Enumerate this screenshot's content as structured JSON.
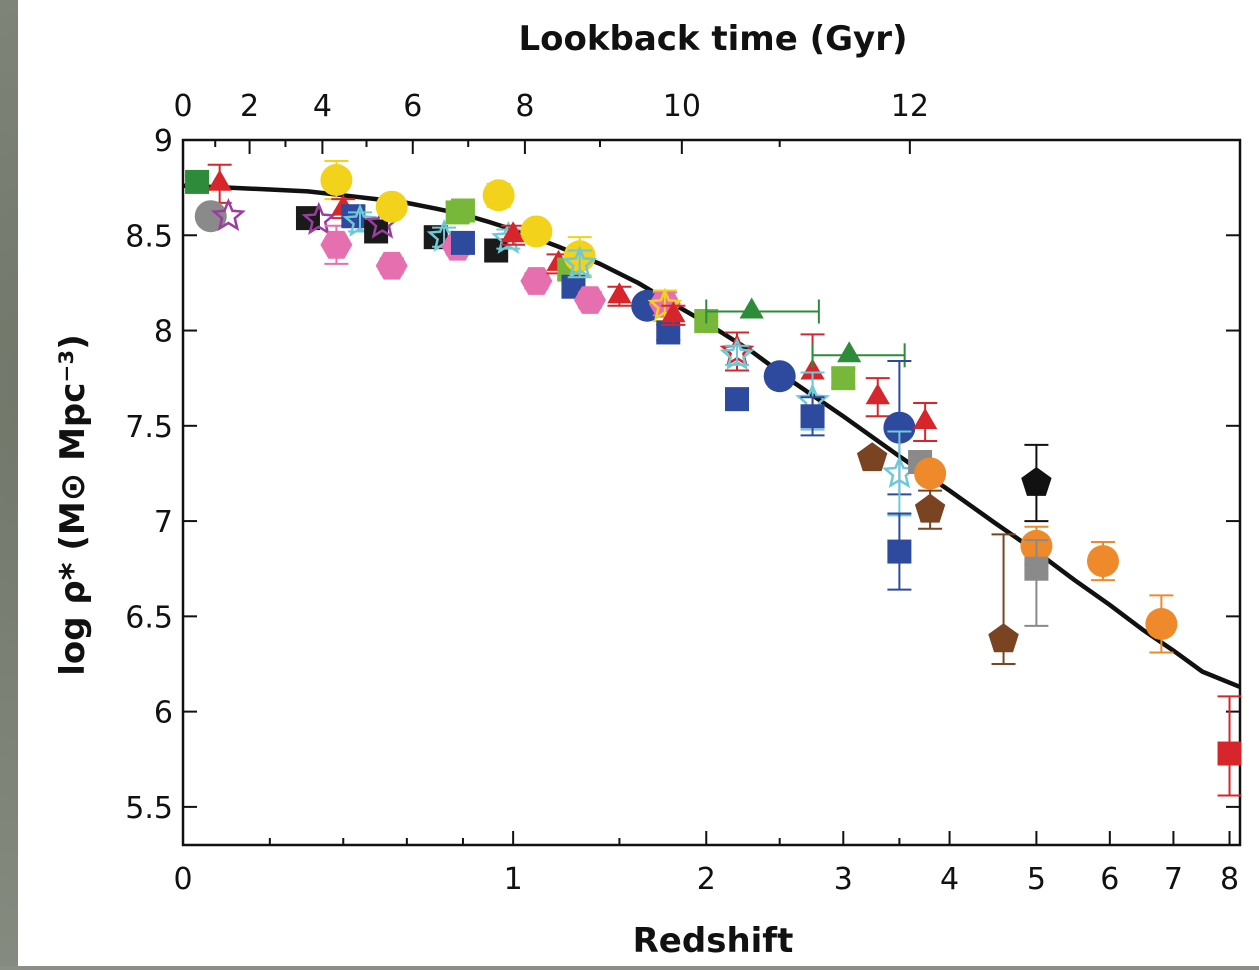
{
  "chart_data": {
    "type": "scatter",
    "title": "",
    "xlabel": "Redshift",
    "ylabel": "log ρ* (M⊙ Mpc⁻³)",
    "top_axis_label": "Lookback time (Gyr)",
    "x_scale": "log(1+z)",
    "xlim": [
      0,
      8.2
    ],
    "ylim": [
      5.3,
      9
    ],
    "x_ticks": [
      0,
      1,
      2,
      3,
      4,
      5,
      6,
      7,
      8
    ],
    "y_ticks": [
      5.5,
      6,
      6.5,
      7,
      7.5,
      8,
      8.5,
      9
    ],
    "top_ticks": [
      0,
      2,
      4,
      6,
      8,
      10,
      12
    ],
    "model_curve": [
      {
        "x": 0,
        "y": 8.76
      },
      {
        "x": 0.1,
        "y": 8.75
      },
      {
        "x": 0.2,
        "y": 8.74
      },
      {
        "x": 0.3,
        "y": 8.73
      },
      {
        "x": 0.4,
        "y": 8.71
      },
      {
        "x": 0.5,
        "y": 8.69
      },
      {
        "x": 0.6,
        "y": 8.67
      },
      {
        "x": 0.7,
        "y": 8.64
      },
      {
        "x": 0.8,
        "y": 8.61
      },
      {
        "x": 0.9,
        "y": 8.57
      },
      {
        "x": 1.0,
        "y": 8.53
      },
      {
        "x": 1.2,
        "y": 8.44
      },
      {
        "x": 1.4,
        "y": 8.35
      },
      {
        "x": 1.6,
        "y": 8.25
      },
      {
        "x": 1.8,
        "y": 8.14
      },
      {
        "x": 2.0,
        "y": 8.04
      },
      {
        "x": 2.3,
        "y": 7.89
      },
      {
        "x": 2.6,
        "y": 7.73
      },
      {
        "x": 3.0,
        "y": 7.55
      },
      {
        "x": 3.5,
        "y": 7.34
      },
      {
        "x": 4.0,
        "y": 7.16
      },
      {
        "x": 4.5,
        "y": 6.99
      },
      {
        "x": 5.0,
        "y": 6.84
      },
      {
        "x": 5.5,
        "y": 6.69
      },
      {
        "x": 6.0,
        "y": 6.56
      },
      {
        "x": 6.5,
        "y": 6.43
      },
      {
        "x": 7.0,
        "y": 6.32
      },
      {
        "x": 7.5,
        "y": 6.21
      },
      {
        "x": 8.2,
        "y": 6.13
      }
    ],
    "points": [
      {
        "x": 0.03,
        "y": 8.78,
        "shape": "square",
        "color": "#2e8b3a",
        "err": [
          0.03,
          0.03
        ]
      },
      {
        "x": 0.08,
        "y": 8.77,
        "shape": "triangle",
        "color": "#d6262b",
        "err": [
          0.1,
          0.1
        ]
      },
      {
        "x": 0.06,
        "y": 8.6,
        "shape": "circle",
        "color": "#8a8a8a"
      },
      {
        "x": 0.1,
        "y": 8.6,
        "shape": "star",
        "color": "#9b3da0"
      },
      {
        "x": 0.3,
        "y": 8.59,
        "shape": "square",
        "color": "#1a1a1a"
      },
      {
        "x": 0.33,
        "y": 8.58,
        "shape": "star",
        "color": "#9b3da0"
      },
      {
        "x": 0.38,
        "y": 8.79,
        "shape": "circle",
        "color": "#f2d21b",
        "err": [
          0.1,
          0.1
        ]
      },
      {
        "x": 0.38,
        "y": 8.45,
        "shape": "hexagon",
        "color": "#e66fb0",
        "err": [
          0.1,
          0.1
        ]
      },
      {
        "x": 0.4,
        "y": 8.64,
        "shape": "triangle",
        "color": "#d6262b",
        "err": [
          0.05,
          0.05
        ]
      },
      {
        "x": 0.43,
        "y": 8.6,
        "shape": "square",
        "color": "#2e4a9e",
        "err": [
          0.05,
          0.05
        ]
      },
      {
        "x": 0.45,
        "y": 8.57,
        "shape": "star",
        "color": "#6fc8d8",
        "err": [
          0.05,
          0.05
        ]
      },
      {
        "x": 0.5,
        "y": 8.52,
        "shape": "square",
        "color": "#1a1a1a"
      },
      {
        "x": 0.52,
        "y": 8.56,
        "shape": "star",
        "color": "#9b3da0"
      },
      {
        "x": 0.55,
        "y": 8.65,
        "shape": "circle",
        "color": "#f2d21b",
        "err": [
          0.05,
          0.05
        ]
      },
      {
        "x": 0.55,
        "y": 8.34,
        "shape": "hexagon",
        "color": "#e66fb0",
        "err": [
          0.04,
          0.04
        ]
      },
      {
        "x": 0.7,
        "y": 8.49,
        "shape": "square",
        "color": "#1a1a1a"
      },
      {
        "x": 0.73,
        "y": 8.49,
        "shape": "star",
        "color": "#6fc8d8",
        "err": [
          0.05,
          0.05
        ]
      },
      {
        "x": 0.78,
        "y": 8.62,
        "shape": "square",
        "color": "#77b83a",
        "err": [
          0.05,
          0.05
        ]
      },
      {
        "x": 0.78,
        "y": 8.44,
        "shape": "hexagon",
        "color": "#e66fb0",
        "err": [
          0.04,
          0.04
        ]
      },
      {
        "x": 0.8,
        "y": 8.63,
        "shape": "square",
        "color": "#77b83a",
        "err": [
          0.05,
          0.05
        ]
      },
      {
        "x": 0.8,
        "y": 8.46,
        "shape": "square",
        "color": "#2e4a9e",
        "err": [
          0.05,
          0.05
        ]
      },
      {
        "x": 0.94,
        "y": 8.71,
        "shape": "circle",
        "color": "#f2d21b",
        "err": [
          0.06,
          0.06
        ]
      },
      {
        "x": 0.93,
        "y": 8.42,
        "shape": "square",
        "color": "#1a1a1a"
      },
      {
        "x": 0.98,
        "y": 8.48,
        "shape": "star",
        "color": "#6fc8d8",
        "err": [
          0.05,
          0.05
        ]
      },
      {
        "x": 1.0,
        "y": 8.5,
        "shape": "triangle",
        "color": "#d6262b",
        "err": [
          0.05,
          0.05
        ]
      },
      {
        "x": 1.1,
        "y": 8.52,
        "shape": "circle",
        "color": "#f2d21b",
        "err": [
          0.05,
          0.05
        ]
      },
      {
        "x": 1.1,
        "y": 8.26,
        "shape": "hexagon",
        "color": "#e66fb0",
        "err": [
          0.04,
          0.04
        ]
      },
      {
        "x": 1.2,
        "y": 8.35,
        "shape": "triangle",
        "color": "#d6262b",
        "err": [
          0.05,
          0.05
        ]
      },
      {
        "x": 1.25,
        "y": 8.32,
        "shape": "square",
        "color": "#77b83a",
        "err": [
          0.05,
          0.05
        ]
      },
      {
        "x": 1.3,
        "y": 8.39,
        "shape": "circle",
        "color": "#f2d21b",
        "err": [
          0.1,
          0.1
        ]
      },
      {
        "x": 1.27,
        "y": 8.23,
        "shape": "square",
        "color": "#2e4a9e",
        "err": [
          0.05,
          0.05
        ]
      },
      {
        "x": 1.3,
        "y": 8.35,
        "shape": "star",
        "color": "#6fc8d8",
        "err": [
          0.07,
          0.07
        ]
      },
      {
        "x": 1.35,
        "y": 8.16,
        "shape": "hexagon",
        "color": "#e66fb0",
        "err": [
          0.04,
          0.04
        ]
      },
      {
        "x": 1.5,
        "y": 8.18,
        "shape": "triangle",
        "color": "#d6262b",
        "err": [
          0.05,
          0.05
        ]
      },
      {
        "x": 1.65,
        "y": 8.13,
        "shape": "circle",
        "color": "#2e4a9e"
      },
      {
        "x": 1.75,
        "y": 8.14,
        "shape": "hexagon",
        "color": "#e66fb0",
        "err": [
          0.06,
          0.06
        ]
      },
      {
        "x": 1.75,
        "y": 8.13,
        "shape": "star",
        "color": "#f2d21b",
        "err": [
          0.08,
          0.08
        ]
      },
      {
        "x": 1.77,
        "y": 7.99,
        "shape": "square",
        "color": "#2e4a9e",
        "err": [
          0.04,
          0.04
        ]
      },
      {
        "x": 1.8,
        "y": 8.08,
        "shape": "triangle",
        "color": "#d6262b",
        "err": [
          0.05,
          0.05
        ]
      },
      {
        "x": 2.0,
        "y": 8.05,
        "shape": "square",
        "color": "#77b83a"
      },
      {
        "x": 2.3,
        "y": 8.1,
        "shape": "triangle",
        "color": "#2e8b3a",
        "xerr": [
          0.3,
          0.5
        ]
      },
      {
        "x": 2.2,
        "y": 7.89,
        "shape": "star",
        "color": "#d6262b",
        "err": [
          0.1,
          0.1
        ]
      },
      {
        "x": 2.2,
        "y": 7.87,
        "shape": "star",
        "color": "#6fc8d8",
        "err": [
          0.05,
          0.05
        ]
      },
      {
        "x": 2.2,
        "y": 7.64,
        "shape": "square",
        "color": "#2e4a9e",
        "err": [
          0.05,
          0.05
        ]
      },
      {
        "x": 2.5,
        "y": 7.76,
        "shape": "circle",
        "color": "#2e4a9e"
      },
      {
        "x": 2.75,
        "y": 7.78,
        "shape": "triangle",
        "color": "#d6262b",
        "err": [
          0.2,
          0.2
        ]
      },
      {
        "x": 2.75,
        "y": 7.63,
        "shape": "star",
        "color": "#6fc8d8",
        "err": [
          0.15,
          0.15
        ]
      },
      {
        "x": 2.75,
        "y": 7.55,
        "shape": "square",
        "color": "#2e4a9e",
        "err": [
          0.1,
          0.1
        ]
      },
      {
        "x": 3.0,
        "y": 7.75,
        "shape": "square",
        "color": "#77b83a",
        "err": [
          0.05,
          0.05
        ]
      },
      {
        "x": 3.05,
        "y": 7.87,
        "shape": "triangle",
        "color": "#2e8b3a",
        "xerr": [
          0.3,
          0.5
        ]
      },
      {
        "x": 3.3,
        "y": 7.65,
        "shape": "triangle",
        "color": "#d6262b",
        "err": [
          0.1,
          0.1
        ]
      },
      {
        "x": 3.25,
        "y": 7.33,
        "shape": "pentagon",
        "color": "#7a4321"
      },
      {
        "x": 3.5,
        "y": 7.49,
        "shape": "circle",
        "color": "#2e4a9e",
        "err": [
          0.35,
          0.35
        ]
      },
      {
        "x": 3.5,
        "y": 7.25,
        "shape": "star",
        "color": "#6fc8d8",
        "err": [
          0.22,
          0.22
        ]
      },
      {
        "x": 3.5,
        "y": 6.84,
        "shape": "square",
        "color": "#2e4a9e",
        "err": [
          0.2,
          0.2
        ]
      },
      {
        "x": 3.75,
        "y": 7.52,
        "shape": "triangle",
        "color": "#d6262b",
        "err": [
          0.1,
          0.1
        ]
      },
      {
        "x": 3.7,
        "y": 7.31,
        "shape": "square",
        "color": "#8a8a8a"
      },
      {
        "x": 3.8,
        "y": 7.25,
        "shape": "circle",
        "color": "#ee8a2b"
      },
      {
        "x": 3.8,
        "y": 7.06,
        "shape": "pentagon",
        "color": "#7a4321",
        "err": [
          0.1,
          0.1
        ]
      },
      {
        "x": 4.6,
        "y": 6.38,
        "shape": "pentagon",
        "color": "#7a4321",
        "err": [
          0.55,
          0.13
        ]
      },
      {
        "x": 5.0,
        "y": 7.2,
        "shape": "pentagon",
        "color": "#111111",
        "err": [
          0.2,
          0.2
        ]
      },
      {
        "x": 5.0,
        "y": 6.87,
        "shape": "circle",
        "color": "#ee8a2b",
        "err": [
          0.1,
          0.1
        ]
      },
      {
        "x": 5.0,
        "y": 6.75,
        "shape": "square",
        "color": "#8a8a8a",
        "err": [
          0.15,
          0.3
        ]
      },
      {
        "x": 5.9,
        "y": 6.79,
        "shape": "circle",
        "color": "#ee8a2b",
        "err": [
          0.1,
          0.1
        ]
      },
      {
        "x": 6.8,
        "y": 6.46,
        "shape": "circle",
        "color": "#ee8a2b",
        "err": [
          0.15,
          0.15
        ]
      },
      {
        "x": 8.0,
        "y": 5.78,
        "shape": "square",
        "color": "#d6262b",
        "err": [
          0.3,
          0.22
        ]
      }
    ]
  }
}
